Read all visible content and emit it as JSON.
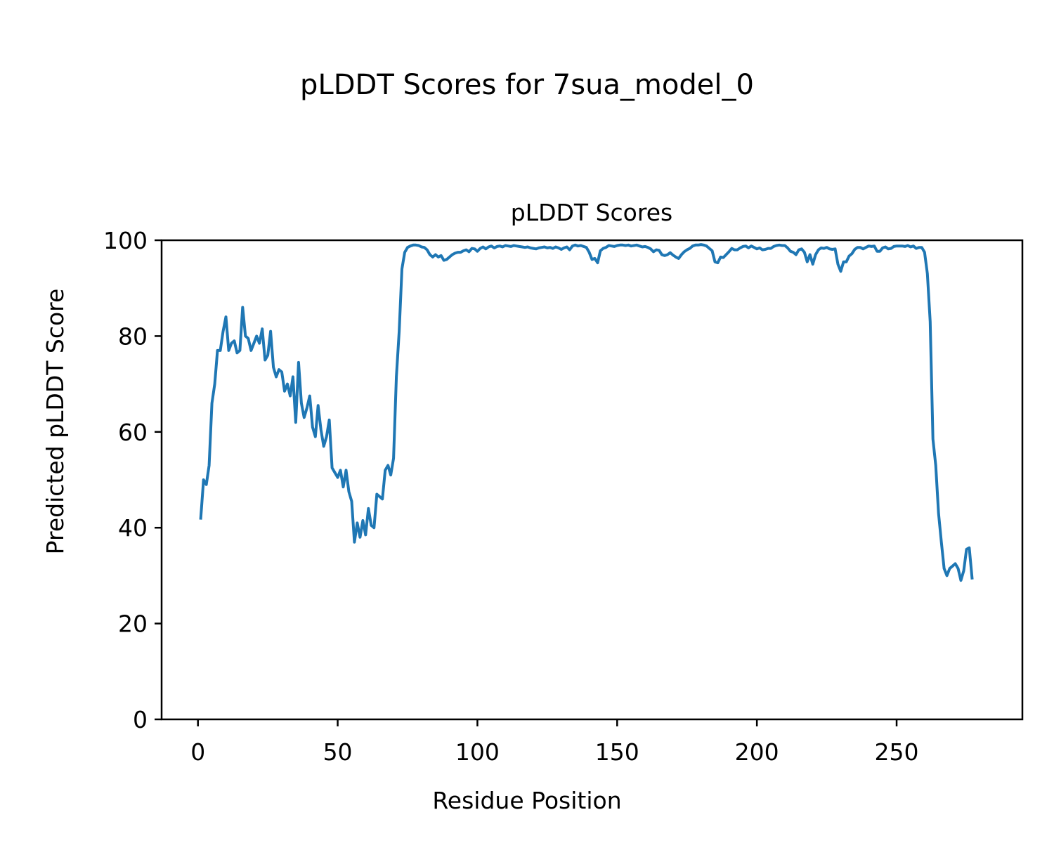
{
  "figure": {
    "suptitle": "pLDDT Scores for 7sua_model_0"
  },
  "chart_data": {
    "type": "line",
    "title": "pLDDT Scores",
    "xlabel": "Residue Position",
    "ylabel": "Predicted pLDDT Score",
    "xlim": [
      -13,
      295
    ],
    "ylim": [
      0,
      100
    ],
    "xticks": [
      0,
      50,
      100,
      150,
      200,
      250
    ],
    "yticks": [
      0,
      20,
      40,
      60,
      80,
      100
    ],
    "grid": false,
    "line_color": "#1f77b4",
    "series": [
      {
        "name": "",
        "points": [
          [
            1,
            42
          ],
          [
            2,
            50
          ],
          [
            3,
            49
          ],
          [
            4,
            53
          ],
          [
            5,
            66
          ],
          [
            6,
            70
          ],
          [
            7,
            77
          ],
          [
            8,
            77
          ],
          [
            9,
            81
          ],
          [
            10,
            84
          ],
          [
            11,
            77
          ],
          [
            12,
            78.5
          ],
          [
            13,
            79
          ],
          [
            14,
            76.5
          ],
          [
            15,
            77
          ],
          [
            16,
            86
          ],
          [
            17,
            80
          ],
          [
            18,
            79.5
          ],
          [
            19,
            77
          ],
          [
            20,
            78.5
          ],
          [
            21,
            80
          ],
          [
            22,
            78.5
          ],
          [
            23,
            81.5
          ],
          [
            24,
            75
          ],
          [
            25,
            76
          ],
          [
            26,
            81
          ],
          [
            27,
            73.5
          ],
          [
            28,
            71.5
          ],
          [
            29,
            73
          ],
          [
            30,
            72.5
          ],
          [
            31,
            68.5
          ],
          [
            32,
            70
          ],
          [
            33,
            67.5
          ],
          [
            34,
            71.5
          ],
          [
            35,
            62
          ],
          [
            36,
            74.5
          ],
          [
            37,
            66
          ],
          [
            38,
            63
          ],
          [
            39,
            65
          ],
          [
            40,
            67.5
          ],
          [
            41,
            61
          ],
          [
            42,
            59
          ],
          [
            43,
            65.5
          ],
          [
            44,
            60.5
          ],
          [
            45,
            57
          ],
          [
            46,
            59
          ],
          [
            47,
            62.5
          ],
          [
            48,
            52.5
          ],
          [
            49,
            51.5
          ],
          [
            50,
            50.5
          ],
          [
            51,
            52
          ],
          [
            52,
            48.5
          ],
          [
            53,
            52
          ],
          [
            54,
            47.5
          ],
          [
            55,
            45.5
          ],
          [
            56,
            37
          ],
          [
            57,
            41
          ],
          [
            58,
            38
          ],
          [
            59,
            41.5
          ],
          [
            60,
            38.5
          ],
          [
            61,
            44
          ],
          [
            62,
            40.5
          ],
          [
            63,
            40
          ],
          [
            64,
            47
          ],
          [
            65,
            46.5
          ],
          [
            66,
            46
          ],
          [
            67,
            52
          ],
          [
            68,
            53
          ],
          [
            69,
            51
          ],
          [
            70,
            54.5
          ],
          [
            71,
            71.5
          ],
          [
            72,
            81
          ],
          [
            73,
            94
          ],
          [
            74,
            97.5
          ],
          [
            75,
            98.5
          ],
          [
            76,
            98.8
          ],
          [
            77,
            99
          ],
          [
            78,
            99
          ],
          [
            79,
            98.9
          ],
          [
            80,
            98.6
          ],
          [
            81,
            98.5
          ],
          [
            82,
            98
          ],
          [
            83,
            97
          ],
          [
            84,
            96.5
          ],
          [
            85,
            97
          ],
          [
            86,
            96.5
          ],
          [
            87,
            96.8
          ],
          [
            88,
            95.8
          ],
          [
            89,
            96
          ],
          [
            90,
            96.5
          ],
          [
            91,
            97
          ],
          [
            92,
            97.3
          ],
          [
            93,
            97.5
          ],
          [
            94,
            97.5
          ],
          [
            95,
            97.8
          ],
          [
            96,
            98
          ],
          [
            97,
            97.6
          ],
          [
            98,
            98.3
          ],
          [
            99,
            98.2
          ],
          [
            100,
            97.7
          ],
          [
            101,
            98.3
          ],
          [
            102,
            98.6
          ],
          [
            103,
            98.2
          ],
          [
            104,
            98.6
          ],
          [
            105,
            98.8
          ],
          [
            106,
            98.4
          ],
          [
            107,
            98.7
          ],
          [
            108,
            98.8
          ],
          [
            109,
            98.6
          ],
          [
            110,
            98.9
          ],
          [
            111,
            98.8
          ],
          [
            112,
            98.7
          ],
          [
            113,
            98.9
          ],
          [
            114,
            98.8
          ],
          [
            115,
            98.7
          ],
          [
            116,
            98.6
          ],
          [
            117,
            98.5
          ],
          [
            118,
            98.6
          ],
          [
            119,
            98.4
          ],
          [
            120,
            98.3
          ],
          [
            121,
            98.2
          ],
          [
            122,
            98.4
          ],
          [
            123,
            98.5
          ],
          [
            124,
            98.6
          ],
          [
            125,
            98.4
          ],
          [
            126,
            98.5
          ],
          [
            127,
            98.3
          ],
          [
            128,
            98.6
          ],
          [
            129,
            98.4
          ],
          [
            130,
            98.1
          ],
          [
            131,
            98.4
          ],
          [
            132,
            98.6
          ],
          [
            133,
            98
          ],
          [
            134,
            98.8
          ],
          [
            135,
            99
          ],
          [
            136,
            98.8
          ],
          [
            137,
            98.9
          ],
          [
            138,
            98.7
          ],
          [
            139,
            98.5
          ],
          [
            140,
            97.5
          ],
          [
            141,
            96
          ],
          [
            142,
            96.2
          ],
          [
            143,
            95.3
          ],
          [
            144,
            97.8
          ],
          [
            145,
            98.3
          ],
          [
            146,
            98.5
          ],
          [
            147,
            98.9
          ],
          [
            148,
            98.8
          ],
          [
            149,
            98.7
          ],
          [
            150,
            98.9
          ],
          [
            151,
            99
          ],
          [
            152,
            99
          ],
          [
            153,
            98.9
          ],
          [
            154,
            99
          ],
          [
            155,
            98.8
          ],
          [
            156,
            98.9
          ],
          [
            157,
            99
          ],
          [
            158,
            98.8
          ],
          [
            159,
            98.6
          ],
          [
            160,
            98.7
          ],
          [
            161,
            98.5
          ],
          [
            162,
            98.2
          ],
          [
            163,
            97.6
          ],
          [
            164,
            98
          ],
          [
            165,
            97.9
          ],
          [
            166,
            97
          ],
          [
            167,
            96.8
          ],
          [
            168,
            97
          ],
          [
            169,
            97.4
          ],
          [
            170,
            96.9
          ],
          [
            171,
            96.5
          ],
          [
            172,
            96.2
          ],
          [
            173,
            97
          ],
          [
            174,
            97.6
          ],
          [
            175,
            98
          ],
          [
            176,
            98.3
          ],
          [
            177,
            98.8
          ],
          [
            178,
            99
          ],
          [
            179,
            99
          ],
          [
            180,
            99.1
          ],
          [
            181,
            99
          ],
          [
            182,
            98.8
          ],
          [
            183,
            98.3
          ],
          [
            184,
            97.8
          ],
          [
            185,
            95.5
          ],
          [
            186,
            95.3
          ],
          [
            187,
            96.5
          ],
          [
            188,
            96.4
          ],
          [
            189,
            97
          ],
          [
            190,
            97.6
          ],
          [
            191,
            98.3
          ],
          [
            192,
            98
          ],
          [
            193,
            98
          ],
          [
            194,
            98.4
          ],
          [
            195,
            98.7
          ],
          [
            196,
            98.8
          ],
          [
            197,
            98.4
          ],
          [
            198,
            98.8
          ],
          [
            199,
            98.5
          ],
          [
            200,
            98.2
          ],
          [
            201,
            98.4
          ],
          [
            202,
            98
          ],
          [
            203,
            98.1
          ],
          [
            204,
            98.3
          ],
          [
            205,
            98.3
          ],
          [
            206,
            98.7
          ],
          [
            207,
            98.9
          ],
          [
            208,
            99
          ],
          [
            209,
            98.9
          ],
          [
            210,
            98.9
          ],
          [
            211,
            98.4
          ],
          [
            212,
            97.7
          ],
          [
            213,
            97.5
          ],
          [
            214,
            97
          ],
          [
            215,
            98
          ],
          [
            216,
            98.2
          ],
          [
            217,
            97.5
          ],
          [
            218,
            95.5
          ],
          [
            219,
            97
          ],
          [
            220,
            95
          ],
          [
            221,
            97
          ],
          [
            222,
            98
          ],
          [
            223,
            98.4
          ],
          [
            224,
            98.3
          ],
          [
            225,
            98.5
          ],
          [
            226,
            98.2
          ],
          [
            227,
            98.1
          ],
          [
            228,
            98.2
          ],
          [
            229,
            95
          ],
          [
            230,
            93.5
          ],
          [
            231,
            95.5
          ],
          [
            232,
            95.5
          ],
          [
            233,
            96.7
          ],
          [
            234,
            97.2
          ],
          [
            235,
            98.1
          ],
          [
            236,
            98.5
          ],
          [
            237,
            98.5
          ],
          [
            238,
            98.2
          ],
          [
            239,
            98.5
          ],
          [
            240,
            98.8
          ],
          [
            241,
            98.7
          ],
          [
            242,
            98.8
          ],
          [
            243,
            97.7
          ],
          [
            244,
            97.7
          ],
          [
            245,
            98.4
          ],
          [
            246,
            98.6
          ],
          [
            247,
            98.2
          ],
          [
            248,
            98.3
          ],
          [
            249,
            98.7
          ],
          [
            250,
            98.8
          ],
          [
            251,
            98.8
          ],
          [
            252,
            98.8
          ],
          [
            253,
            98.7
          ],
          [
            254,
            98.9
          ],
          [
            255,
            98.6
          ],
          [
            256,
            98.8
          ],
          [
            257,
            98.3
          ],
          [
            258,
            98.5
          ],
          [
            259,
            98.5
          ],
          [
            260,
            97.5
          ],
          [
            261,
            93
          ],
          [
            262,
            83
          ],
          [
            263,
            58.5
          ],
          [
            264,
            53
          ],
          [
            265,
            43
          ],
          [
            266,
            37
          ],
          [
            267,
            31.5
          ],
          [
            268,
            30
          ],
          [
            269,
            31.5
          ],
          [
            270,
            32
          ],
          [
            271,
            32.5
          ],
          [
            272,
            31.5
          ],
          [
            273,
            29
          ],
          [
            274,
            31
          ],
          [
            275,
            35.5
          ],
          [
            276,
            35.8
          ],
          [
            277,
            29.5
          ]
        ]
      }
    ]
  }
}
